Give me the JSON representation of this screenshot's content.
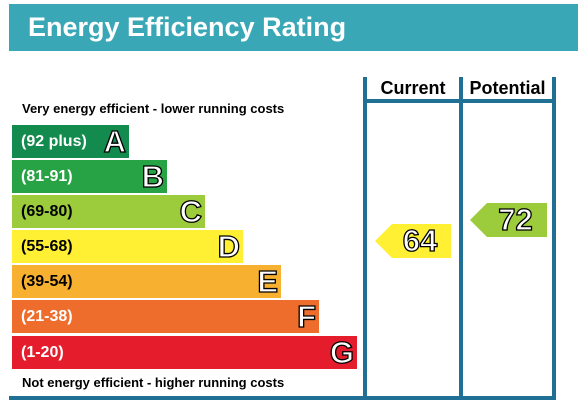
{
  "title": "Energy Efficiency Rating",
  "columns": {
    "current_label": "Current",
    "potential_label": "Potential"
  },
  "top_note": "Very energy efficient - lower running costs",
  "bottom_note": "Not energy efficient - higher running costs",
  "bands": [
    {
      "range": "(92 plus)",
      "letter": "A",
      "color": "#138a4e",
      "text_color": "#ffffff"
    },
    {
      "range": "(81-91)",
      "letter": "B",
      "color": "#27a244",
      "text_color": "#ffffff"
    },
    {
      "range": "(69-80)",
      "letter": "C",
      "color": "#9ccb3c",
      "text_color": "#000000"
    },
    {
      "range": "(55-68)",
      "letter": "D",
      "color": "#fff034",
      "text_color": "#000000"
    },
    {
      "range": "(39-54)",
      "letter": "E",
      "color": "#f8b031",
      "text_color": "#000000"
    },
    {
      "range": "(21-38)",
      "letter": "F",
      "color": "#ee6d2d",
      "text_color": "#ffffff"
    },
    {
      "range": "(1-20)",
      "letter": "G",
      "color": "#e41c2b",
      "text_color": "#ffffff"
    }
  ],
  "current": {
    "value": "64",
    "band": "D",
    "color": "#fff034"
  },
  "potential": {
    "value": "72",
    "band": "C",
    "color": "#9ccb3c"
  },
  "colors": {
    "title_bar": "#3aa7b7",
    "frame": "#1f7094"
  }
}
